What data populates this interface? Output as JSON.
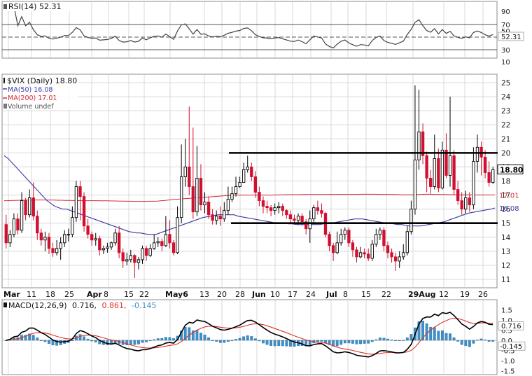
{
  "colors": {
    "up": "#000000",
    "down": "#d0102f",
    "ma50": "#3a3aa6",
    "ma200": "#d42a3a",
    "macd_line": "#000000",
    "signal_line": "#e0302a",
    "histogram": "#3d8fc7",
    "grid": "#d8d8d8",
    "frame": "#8c8c8c"
  },
  "rsi_panel": {
    "title": "RSI(14) 52.31",
    "levels": [
      "90",
      "70",
      "50",
      "30",
      "10"
    ],
    "current_label": "52.31"
  },
  "price_panel": {
    "title": "$VIX (Daily) 18.80",
    "legend_ma50": "MA(50) 16.08",
    "legend_ma200": "MA(200) 17.01",
    "legend_volume": "Volume undef",
    "y_ticks": [
      "25",
      "24",
      "23",
      "22",
      "21",
      "20",
      "19",
      "18",
      "17",
      "16",
      "15",
      "14",
      "13",
      "12",
      "11"
    ],
    "tag_last": "18.80",
    "tag_ma200": "17.01",
    "tag_ma50": "16.08"
  },
  "macd_panel": {
    "title_name": "MACD(12,26,9)",
    "title_macd": "0.716,",
    "title_signal": "0.861,",
    "title_hist": "-0.145",
    "y_ticks": [
      "1.5",
      "1.0",
      "0.5",
      "0.0",
      "-0.5",
      "-1.0",
      "-1.5"
    ],
    "tag_macd": "0.716",
    "tag_hist": "-0.145"
  },
  "x_axis": {
    "labels": [
      "Mar",
      "11",
      "18",
      "25",
      "Apr",
      "8",
      "15",
      "22",
      "May6",
      "13",
      "20",
      "28",
      "Jun",
      "10",
      "17",
      "24",
      "Jul",
      "8",
      "15",
      "22",
      "29Aug",
      "12",
      "19",
      "26"
    ]
  },
  "chart_data": {
    "type": "candlestick",
    "symbol": "$VIX (Daily)",
    "last": 18.8,
    "x_range": [
      "Mar",
      "26 Aug"
    ],
    "ylim": [
      10.5,
      25.5
    ],
    "support_line": 15.0,
    "resistance_line": 20.0,
    "series": [
      {
        "name": "MA(50)",
        "last": 16.08,
        "values": [
          19.8,
          19.6,
          19.3,
          19.0,
          18.7,
          18.4,
          18.1,
          17.8,
          17.5,
          17.2,
          16.9,
          16.6,
          16.4,
          16.2,
          16.1,
          16.0,
          16.0,
          15.9,
          15.8,
          15.7,
          15.6,
          15.5,
          15.4,
          15.3,
          15.2,
          15.1,
          15.0,
          14.9,
          14.8,
          14.7,
          14.6,
          14.5,
          14.4,
          14.35,
          14.3,
          14.3,
          14.25,
          14.2,
          14.2,
          14.2,
          14.3,
          14.4,
          14.5,
          14.6,
          14.7,
          14.8,
          14.9,
          15.0,
          15.1,
          15.2,
          15.3,
          15.4,
          15.45,
          15.5,
          15.55,
          15.6,
          15.6,
          15.6,
          15.6,
          15.6,
          15.5,
          15.45,
          15.4,
          15.35,
          15.3,
          15.25,
          15.2,
          15.15,
          15.1,
          15.05,
          15.0,
          15.0,
          15.0,
          14.95,
          14.95,
          14.9,
          14.9,
          14.9,
          14.9,
          14.9,
          14.9,
          14.9,
          14.95,
          15.0,
          15.0,
          15.05,
          15.1,
          15.15,
          15.2,
          15.25,
          15.3,
          15.3,
          15.3,
          15.25,
          15.2,
          15.15,
          15.1,
          15.05,
          15.0,
          15.0,
          14.95,
          14.9,
          14.9,
          14.85,
          14.8,
          14.8,
          14.8,
          14.8,
          14.85,
          14.9,
          14.95,
          15.0,
          15.05,
          15.1,
          15.2,
          15.3,
          15.4,
          15.5,
          15.6,
          15.7,
          15.75,
          15.8,
          15.85,
          15.9,
          15.95,
          16.0,
          16.08
        ]
      },
      {
        "name": "MA(200)",
        "last": 17.01,
        "values": [
          16.6,
          16.6,
          16.62,
          16.62,
          16.63,
          16.63,
          16.64,
          16.64,
          16.65,
          16.65,
          16.65,
          16.65,
          16.64,
          16.64,
          16.63,
          16.63,
          16.62,
          16.62,
          16.61,
          16.61,
          16.6,
          16.6,
          16.6,
          16.6,
          16.6,
          16.59,
          16.59,
          16.59,
          16.58,
          16.58,
          16.57,
          16.57,
          16.56,
          16.56,
          16.55,
          16.55,
          16.55,
          16.55,
          16.56,
          16.56,
          16.57,
          16.6,
          16.62,
          16.65,
          16.68,
          16.7,
          16.72,
          16.74,
          16.76,
          16.78,
          16.8,
          16.82,
          16.84,
          16.86,
          16.88,
          16.9,
          16.92,
          16.94,
          16.96,
          16.98,
          17.0,
          17.0,
          17.0,
          17.0,
          17.0,
          17.0,
          17.0,
          17.0,
          17.0,
          17.0,
          17.0,
          17.02,
          17.02,
          17.02,
          17.03,
          17.03,
          17.03,
          17.03,
          17.04,
          17.04,
          17.04,
          17.04,
          17.04,
          17.04,
          17.04,
          17.05,
          17.05,
          17.05,
          17.05,
          17.05,
          17.05,
          17.05,
          17.05,
          17.06,
          17.06,
          17.06,
          17.06,
          17.06,
          17.05,
          17.05,
          17.05,
          17.04,
          17.04,
          17.03,
          17.02,
          17.02,
          17.02,
          17.03,
          17.04,
          17.05,
          17.06,
          17.06,
          17.05,
          17.05,
          17.04,
          17.04,
          17.03,
          17.03,
          17.02,
          17.02,
          17.02,
          17.02,
          17.01,
          17.01,
          17.01,
          17.01,
          17.01,
          17.01,
          17.01
        ]
      }
    ],
    "candles": [
      [
        14.9,
        13.6,
        15.6,
        13.2
      ],
      [
        13.6,
        14.2,
        14.5,
        13.3
      ],
      [
        14.2,
        15.3,
        15.7,
        14.0
      ],
      [
        15.3,
        14.5,
        15.7,
        14.2
      ],
      [
        14.5,
        16.6,
        17.2,
        14.3
      ],
      [
        16.6,
        15.6,
        16.8,
        15.2
      ],
      [
        15.6,
        16.8,
        17.4,
        15.4
      ],
      [
        16.8,
        15.5,
        17.9,
        15.2
      ],
      [
        15.5,
        14.3,
        15.9,
        13.8
      ],
      [
        14.3,
        13.8,
        14.6,
        13.4
      ],
      [
        13.8,
        14.0,
        14.4,
        13.0
      ],
      [
        14.0,
        13.2,
        14.3,
        12.8
      ],
      [
        13.2,
        12.9,
        13.6,
        12.6
      ],
      [
        12.9,
        13.2,
        13.8,
        12.7
      ],
      [
        13.2,
        13.6,
        14.0,
        12.4
      ],
      [
        13.6,
        14.2,
        14.5,
        13.3
      ],
      [
        14.2,
        14.2,
        14.6,
        13.7
      ],
      [
        14.2,
        15.4,
        16.2,
        14.0
      ],
      [
        15.4,
        17.6,
        18.0,
        15.1
      ],
      [
        17.6,
        16.9,
        18.0,
        15.2
      ],
      [
        16.9,
        14.8,
        17.2,
        14.4
      ],
      [
        14.8,
        14.2,
        15.3,
        13.9
      ],
      [
        14.2,
        13.8,
        14.4,
        13.4
      ],
      [
        13.8,
        13.9,
        14.3,
        13.4
      ],
      [
        13.9,
        13.1,
        14.1,
        12.7
      ],
      [
        13.1,
        13.2,
        13.4,
        12.8
      ],
      [
        13.2,
        13.3,
        13.6,
        12.9
      ],
      [
        13.3,
        13.6,
        13.7,
        13.1
      ],
      [
        13.6,
        14.3,
        14.6,
        13.4
      ],
      [
        14.3,
        12.9,
        14.8,
        12.5
      ],
      [
        12.9,
        12.3,
        13.2,
        11.8
      ],
      [
        12.3,
        12.4,
        12.9,
        12.0
      ],
      [
        12.4,
        12.7,
        13.1,
        12.2
      ],
      [
        12.7,
        12.2,
        12.8,
        11.1
      ],
      [
        12.2,
        12.4,
        12.6,
        11.7
      ],
      [
        12.4,
        13.2,
        13.4,
        12.1
      ],
      [
        13.2,
        12.7,
        13.4,
        12.3
      ],
      [
        12.7,
        13.2,
        13.5,
        12.6
      ],
      [
        13.2,
        13.6,
        14.2,
        13.1
      ],
      [
        13.6,
        13.7,
        14.0,
        13.3
      ],
      [
        13.7,
        13.4,
        13.9,
        13.0
      ],
      [
        13.4,
        14.2,
        15.5,
        13.3
      ],
      [
        14.2,
        13.6,
        15.2,
        13.2
      ],
      [
        13.6,
        12.9,
        13.8,
        12.7
      ],
      [
        12.9,
        15.4,
        16.2,
        12.8
      ],
      [
        15.4,
        18.3,
        20.6,
        15.0
      ],
      [
        18.3,
        19.0,
        21.0,
        17.6
      ],
      [
        19.0,
        17.6,
        23.3,
        17.0
      ],
      [
        17.6,
        15.8,
        21.8,
        15.3
      ],
      [
        15.8,
        18.2,
        20.5,
        15.5
      ],
      [
        18.2,
        16.3,
        19.2,
        15.9
      ],
      [
        16.3,
        16.5,
        17.2,
        15.7
      ],
      [
        16.5,
        15.6,
        16.9,
        15.3
      ],
      [
        15.6,
        15.2,
        16.0,
        14.9
      ],
      [
        15.2,
        15.5,
        15.9,
        14.9
      ],
      [
        15.5,
        15.3,
        16.2,
        14.8
      ],
      [
        15.3,
        15.9,
        16.5,
        15.1
      ],
      [
        15.9,
        16.7,
        17.6,
        15.6
      ],
      [
        16.7,
        17.1,
        17.6,
        16.5
      ],
      [
        17.1,
        17.6,
        18.3,
        16.9
      ],
      [
        17.6,
        17.9,
        18.3,
        17.5
      ],
      [
        17.9,
        18.8,
        19.3,
        18.3
      ],
      [
        18.8,
        19.0,
        19.8,
        18.6
      ],
      [
        19.0,
        18.3,
        19.3,
        18.0
      ],
      [
        18.3,
        17.2,
        18.7,
        16.8
      ],
      [
        17.2,
        16.6,
        17.6,
        16.2
      ],
      [
        16.6,
        16.2,
        16.9,
        15.7
      ],
      [
        16.2,
        16.1,
        16.6,
        15.7
      ],
      [
        16.1,
        15.9,
        16.3,
        15.5
      ],
      [
        15.9,
        16.1,
        16.4,
        15.6
      ],
      [
        16.1,
        16.2,
        16.5,
        15.7
      ],
      [
        16.2,
        15.9,
        16.4,
        15.5
      ],
      [
        15.9,
        15.6,
        16.0,
        15.3
      ],
      [
        15.6,
        15.3,
        15.9,
        15.0
      ],
      [
        15.3,
        15.2,
        15.6,
        14.9
      ],
      [
        15.2,
        15.5,
        15.7,
        14.9
      ],
      [
        15.5,
        15.1,
        15.7,
        14.8
      ],
      [
        15.1,
        14.6,
        15.3,
        14.2
      ],
      [
        14.6,
        15.3,
        15.9,
        13.6
      ],
      [
        15.3,
        16.1,
        16.3,
        15.0
      ],
      [
        16.1,
        15.9,
        16.6,
        15.6
      ],
      [
        15.9,
        15.7,
        16.4,
        15.4
      ],
      [
        15.7,
        14.2,
        15.8,
        14.0
      ],
      [
        14.2,
        13.4,
        14.4,
        13.0
      ],
      [
        13.4,
        12.9,
        13.6,
        12.3
      ],
      [
        12.9,
        13.6,
        14.4,
        12.8
      ],
      [
        13.6,
        14.2,
        14.6,
        13.4
      ],
      [
        14.2,
        14.5,
        14.7,
        13.8
      ],
      [
        14.5,
        13.6,
        14.7,
        13.3
      ],
      [
        13.6,
        13.1,
        13.8,
        12.6
      ],
      [
        13.1,
        12.6,
        13.3,
        12.2
      ],
      [
        12.6,
        12.9,
        13.3,
        12.5
      ],
      [
        12.9,
        12.8,
        13.2,
        12.5
      ],
      [
        12.8,
        12.5,
        13.2,
        12.3
      ],
      [
        12.5,
        13.5,
        13.8,
        12.3
      ],
      [
        13.5,
        14.2,
        14.6,
        13.3
      ],
      [
        14.2,
        14.5,
        14.7,
        13.8
      ],
      [
        14.5,
        13.4,
        14.7,
        13.0
      ],
      [
        13.4,
        12.9,
        13.7,
        12.5
      ],
      [
        12.9,
        12.6,
        13.2,
        12.2
      ],
      [
        12.6,
        12.3,
        12.9,
        11.6
      ],
      [
        12.3,
        12.6,
        13.0,
        11.8
      ],
      [
        12.6,
        12.9,
        13.5,
        12.4
      ],
      [
        12.9,
        14.4,
        14.8,
        12.7
      ],
      [
        14.4,
        16.0,
        16.6,
        14.2
      ],
      [
        16.0,
        19.5,
        24.8,
        15.6
      ],
      [
        19.5,
        21.5,
        24.5,
        18.8
      ],
      [
        21.5,
        19.8,
        22.1,
        19.2
      ],
      [
        19.8,
        18.2,
        20.1,
        17.2
      ],
      [
        18.2,
        17.6,
        18.8,
        17.1
      ],
      [
        17.6,
        19.6,
        21.3,
        17.4
      ],
      [
        19.6,
        17.5,
        20.3,
        17.2
      ],
      [
        17.5,
        20.2,
        20.8,
        17.4
      ],
      [
        20.2,
        18.4,
        21.4,
        18.2
      ],
      [
        18.4,
        19.8,
        24.0,
        17.6
      ],
      [
        19.8,
        17.4,
        20.2,
        17.0
      ],
      [
        17.4,
        16.6,
        18.0,
        16.3
      ],
      [
        16.6,
        16.0,
        17.2,
        15.6
      ],
      [
        16.0,
        16.8,
        17.3,
        15.7
      ],
      [
        16.8,
        16.3,
        17.2,
        15.8
      ],
      [
        16.3,
        19.4,
        20.4,
        16.0
      ],
      [
        19.4,
        20.4,
        21.3,
        18.6
      ],
      [
        20.4,
        19.7,
        20.8,
        18.4
      ],
      [
        19.7,
        18.6,
        20.2,
        18.2
      ],
      [
        18.6,
        17.9,
        19.4,
        17.6
      ],
      [
        17.9,
        18.8,
        19.0,
        17.8
      ]
    ]
  }
}
